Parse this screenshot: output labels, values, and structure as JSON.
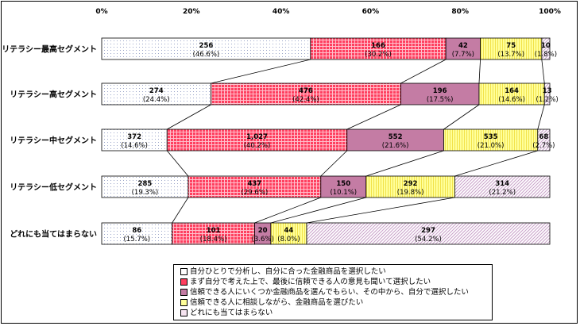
{
  "colors": {
    "cat1": "#ffffff",
    "cat2": "#ff3f5f",
    "cat3": "#c47ca4",
    "cat4": "#ffff99",
    "cat5": "#f6e4f0"
  },
  "legend": [
    "自分ひとりで分析し、自分に合った金融商品を選択したい",
    "まず自分で考えた上で、最後に信頼できる人の意見も聞いて選択したい",
    "信頼できる人にいくつか金融商品を選んでもらい、その中から、自分で選択したい",
    "信頼できる人に相談しながら、金融商品を選びたい",
    "どれにも当てはまらない"
  ],
  "chart_data": {
    "type": "bar",
    "orientation": "horizontal",
    "stacked": "percent",
    "xlim": [
      0,
      100
    ],
    "ticks": [
      "0%",
      "20%",
      "40%",
      "60%",
      "80%",
      "100%"
    ],
    "categories": [
      "リテラシー最高セグメント",
      "リテラシー高セグメント",
      "リテラシー中セグメント",
      "リテラシー低セグメント",
      "どれにも当てはまらない"
    ],
    "series": [
      {
        "name": "自分ひとりで分析し、自分に合った金融商品を選択したい",
        "counts": [
          "256",
          "274",
          "372",
          "285",
          "86"
        ],
        "values": [
          46.6,
          24.4,
          14.6,
          19.3,
          15.7
        ],
        "labels": [
          "(46.6%)",
          "(24.4%)",
          "(14.6%)",
          "(19.3%)",
          "(15.7%)"
        ]
      },
      {
        "name": "まず自分で考えた上で、最後に信頼できる人の意見も聞いて選択したい",
        "counts": [
          "166",
          "476",
          "1,027",
          "437",
          "101"
        ],
        "values": [
          30.2,
          42.4,
          40.2,
          29.6,
          18.4
        ],
        "labels": [
          "(30.2%)",
          "(42.4%)",
          "(40.2%)",
          "(29.6%)",
          "(18.4%)"
        ]
      },
      {
        "name": "信頼できる人にいくつか金融商品を選んでもらい、その中から、自分で選択したい",
        "counts": [
          "42",
          "196",
          "552",
          "150",
          "20"
        ],
        "values": [
          7.7,
          17.5,
          21.6,
          10.1,
          3.6
        ],
        "labels": [
          "(7.7%)",
          "(17.5%)",
          "(21.6%)",
          "(10.1%)",
          "(3.6%)"
        ]
      },
      {
        "name": "信頼できる人に相談しながら、金融商品を選びたい",
        "counts": [
          "75",
          "164",
          "535",
          "292",
          "44"
        ],
        "values": [
          13.7,
          14.6,
          21.0,
          19.8,
          8.0
        ],
        "labels": [
          "(13.7%)",
          "(14.6%)",
          "(21.0%)",
          "(19.8%)",
          "(8.0%)"
        ]
      },
      {
        "name": "どれにも当てはまらない",
        "counts": [
          "10",
          "13",
          "68",
          "314",
          "297"
        ],
        "values": [
          1.8,
          1.2,
          2.7,
          21.2,
          54.2
        ],
        "labels": [
          "(1.8%)",
          "(1.2%)",
          "(2.7%)",
          "(21.2%)",
          "(54.2%)"
        ]
      }
    ]
  }
}
